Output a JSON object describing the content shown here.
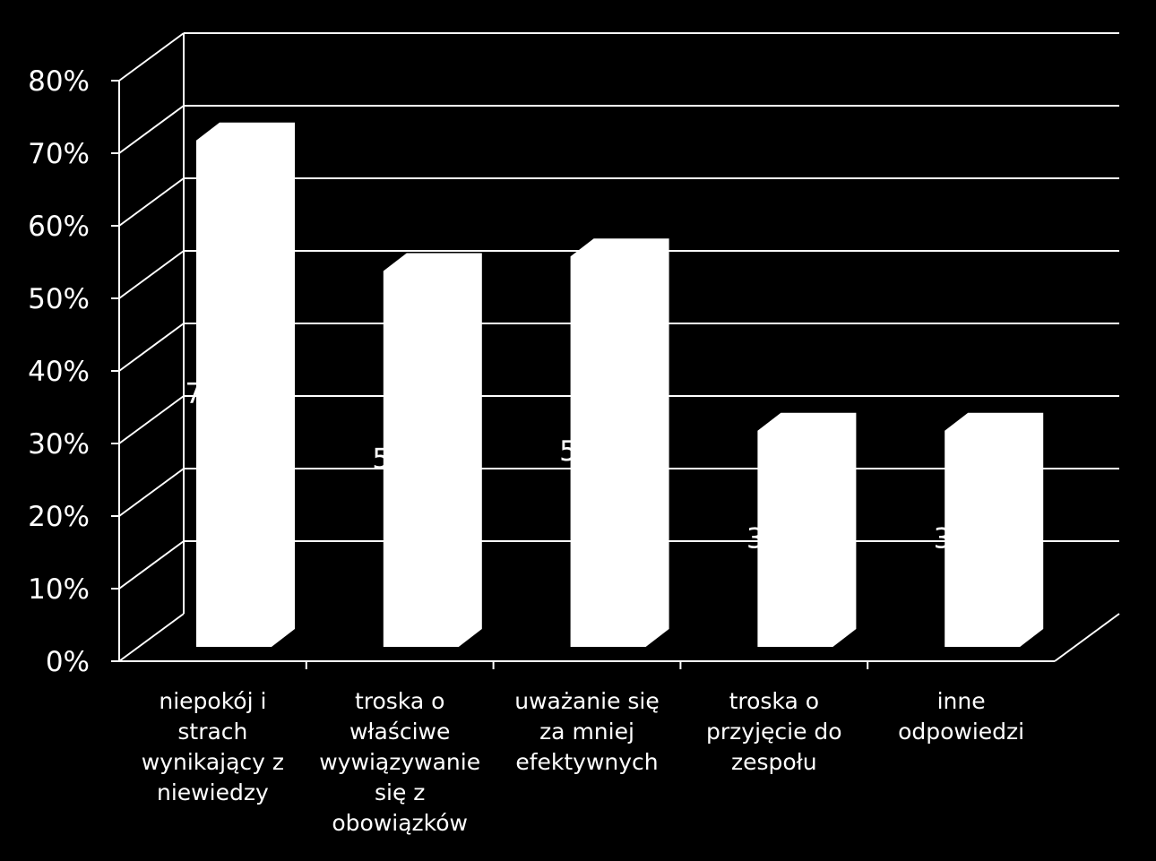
{
  "chart_data": {
    "type": "bar",
    "title": "",
    "xlabel": "",
    "ylabel": "",
    "ylim": [
      0,
      80
    ],
    "y_tick_step": 10,
    "y_tick_labels": [
      "0%",
      "10%",
      "20%",
      "30%",
      "40%",
      "50%",
      "60%",
      "70%",
      "80%"
    ],
    "grid": true,
    "style": "3d-column",
    "bar_color": "#ffffff",
    "background_color": "#000000",
    "categories": [
      "niepokój i strach wynikający z niewiedzy",
      "troska o właściwe wywiązywanie się z obowiązków",
      "uważanie się za mniej efektywnych",
      "troska o przyjęcie do zespołu",
      "inne odpowiedzi"
    ],
    "values": [
      73,
      55,
      57,
      33,
      33
    ]
  }
}
